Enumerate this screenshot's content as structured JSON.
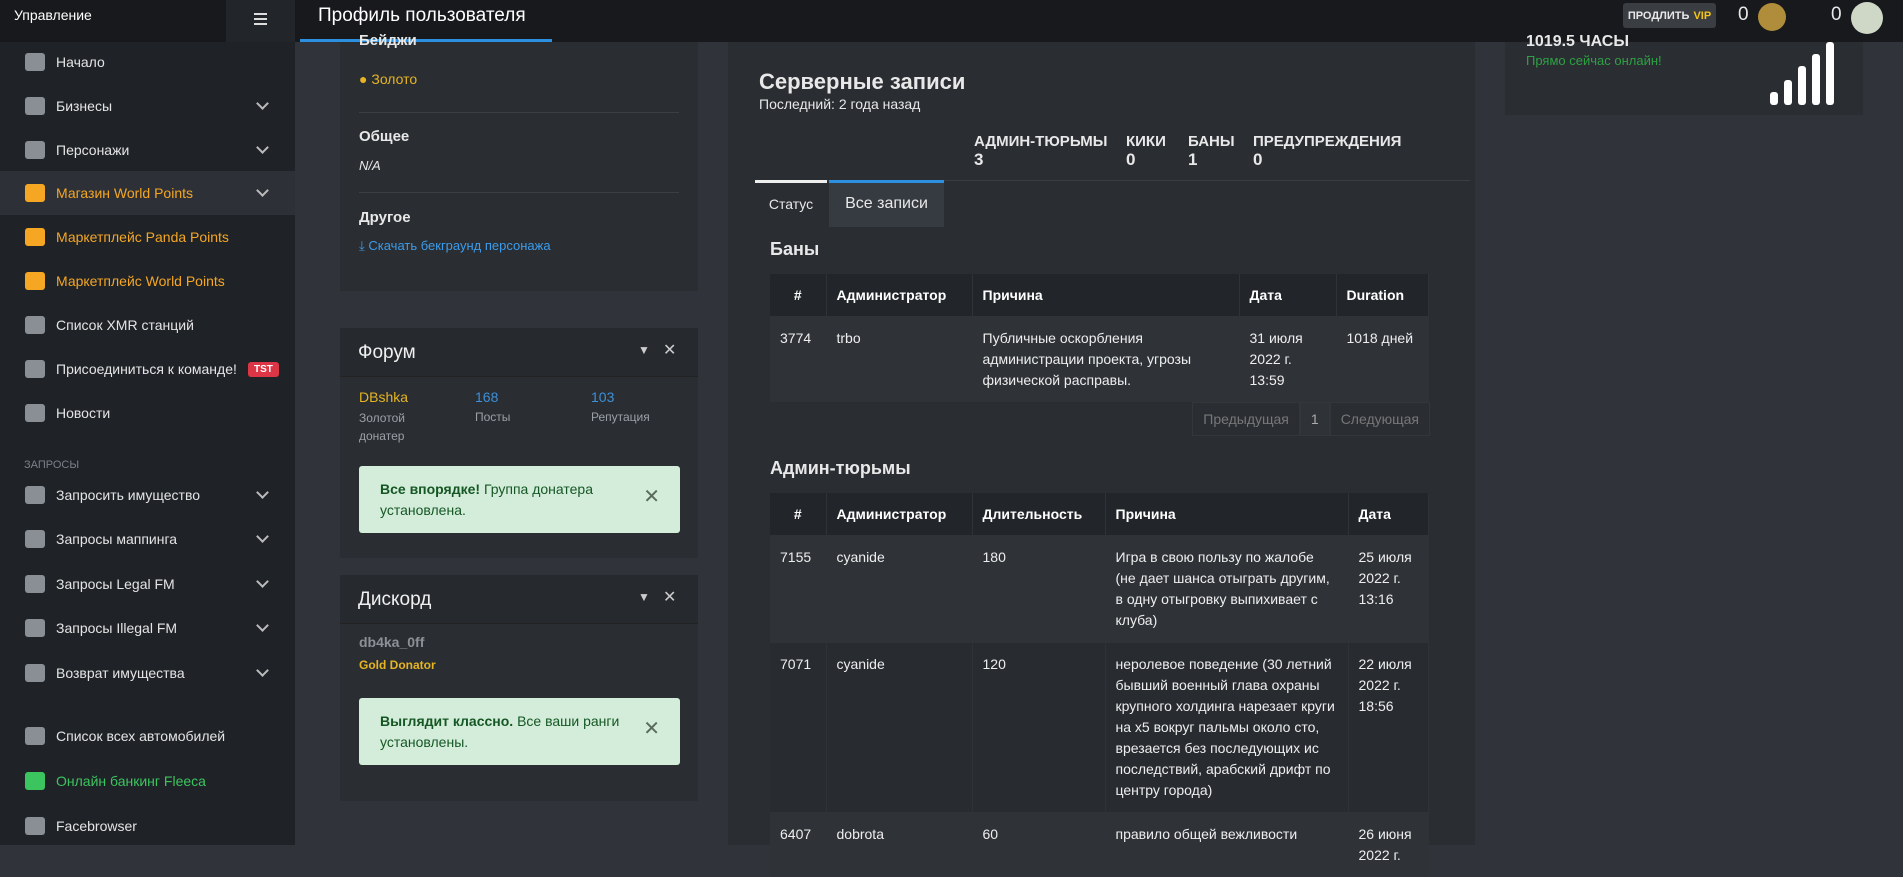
{
  "header": {
    "section": "Управление",
    "title": "Профиль пользователя",
    "vip_action": "ПРОДЛИТЬ",
    "vip_label": "VIP",
    "counters": [
      "0",
      "0"
    ]
  },
  "sidebar": {
    "groups": [
      {
        "items": [
          {
            "label": "Начало",
            "submenu": false
          },
          {
            "label": "Бизнесы",
            "submenu": true
          },
          {
            "label": "Персонажи",
            "submenu": true
          },
          {
            "label": "Магазин World Points",
            "submenu": true,
            "color": "#f5a623",
            "active": true
          },
          {
            "label": "Маркетплейс Panda Points",
            "submenu": false,
            "color": "#f5a623"
          },
          {
            "label": "Маркетплейс World Points",
            "submenu": false,
            "color": "#f5a623"
          },
          {
            "label": "Список XMR станций",
            "submenu": false
          },
          {
            "label": "Присоединиться к команде!",
            "submenu": false,
            "badge": "TST"
          },
          {
            "label": "Новости",
            "submenu": false
          }
        ]
      },
      {
        "heading": "ЗАПРОСЫ",
        "items": [
          {
            "label": "Запросить имущество",
            "submenu": true
          },
          {
            "label": "Запросы маппинга",
            "submenu": true
          },
          {
            "label": "Запросы Legal FM",
            "submenu": true
          },
          {
            "label": "Запросы Illegal FM",
            "submenu": true
          },
          {
            "label": "Возврат имущества",
            "submenu": true
          }
        ]
      },
      {
        "items": [
          {
            "label": "Список всех автомобилей",
            "submenu": false
          },
          {
            "label": "Онлайн банкинг Fleeca",
            "submenu": false,
            "color": "#3cc45e"
          },
          {
            "label": "Facebrowser",
            "submenu": false
          }
        ]
      }
    ]
  },
  "profile": {
    "badges_title": "Бейджи",
    "badge": "Золото",
    "general_title": "Общее",
    "general_value": "N/A",
    "other_title": "Другое",
    "other_link": "Скачать бекграунд персонажа"
  },
  "forum": {
    "title": "Форум",
    "user": "DBshka",
    "role": "Золотой донатер",
    "posts": 168,
    "posts_label": "Посты",
    "reputation": 103,
    "reputation_label": "Репутация",
    "alert_bold": "Все впорядке!",
    "alert_text": "Группа донатера установлена."
  },
  "discord": {
    "title": "Дискорд",
    "user": "db4ka_0ff",
    "role": "Gold Donator",
    "alert_bold": "Выглядит классно.",
    "alert_text": "Все ваши ранги установлены."
  },
  "records": {
    "title": "Серверные записи",
    "last": "Последний: 2 года назад",
    "stats": [
      {
        "label": "АДМИН-ТЮРЬМЫ",
        "value": 3
      },
      {
        "label": "КИКИ",
        "value": 0
      },
      {
        "label": "БАНЫ",
        "value": 1
      },
      {
        "label": "ПРЕДУПРЕЖДЕНИЯ",
        "value": 0
      }
    ],
    "tabs": [
      "Статус",
      "Все записи"
    ],
    "bans": {
      "title": "Баны",
      "columns": [
        "#",
        "Администратор",
        "Причина",
        "Дата",
        "Duration"
      ],
      "rows": [
        [
          "3774",
          "trbo",
          "Публичные оскорбления администрации проекта, угрозы физической расправы.",
          "31 июля 2022 г. 13:59",
          "1018 дней"
        ]
      ],
      "pagination": [
        "Предыдущая",
        "1",
        "Следующая"
      ]
    },
    "jails": {
      "title": "Админ-тюрьмы",
      "columns": [
        "#",
        "Администратор",
        "Длительность",
        "Причина",
        "Дата"
      ],
      "rows": [
        [
          "7155",
          "cyanide",
          "180",
          "Игра в свою пользу по жалобе (не дает шанса отыграть другим, в одну отыгровку выпихивает с клуба)",
          "25 июля 2022 г. 13:16"
        ],
        [
          "7071",
          "cyanide",
          "120",
          "неролевое поведение (30 летний бывший военный глава охраны крупного холдинга нарезает круги на х5 вокруг пальмы около сто, врезается без последующих ис последствий, арабский дрифт по центру города)",
          "22 июля 2022 г. 18:56"
        ],
        [
          "6407",
          "dobrota",
          "60",
          "правило общей вежливости",
          "26 июня 2022 г."
        ]
      ]
    }
  },
  "online": {
    "hours": "1019.5 ЧАСЫ",
    "status": "Прямо сейчас онлайн!"
  }
}
